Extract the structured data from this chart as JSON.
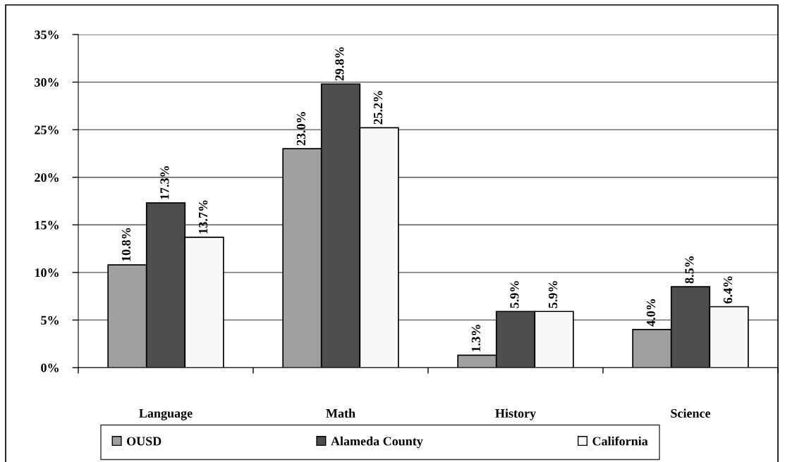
{
  "chart_data": {
    "type": "bar",
    "categories": [
      "Language",
      "Math",
      "History",
      "Science"
    ],
    "series": [
      {
        "name": "OUSD",
        "color": "#a0a0a0",
        "values": [
          10.8,
          23.0,
          1.3,
          4.0
        ],
        "value_labels": [
          "10.8%",
          "23.0%",
          "1.3%",
          "4.0%"
        ]
      },
      {
        "name": "Alameda County",
        "color": "#4d4d4d",
        "values": [
          17.3,
          29.8,
          5.9,
          8.5
        ],
        "value_labels": [
          "17.3%",
          "29.8%",
          "5.9%",
          "8.5%"
        ]
      },
      {
        "name": "California",
        "color": "#f8f8f8",
        "values": [
          13.7,
          25.2,
          5.9,
          6.4
        ],
        "value_labels": [
          "13.7%",
          "25.2%",
          "5.9%",
          "6.4%"
        ]
      }
    ],
    "ylim": [
      0,
      35
    ],
    "yticks": [
      {
        "value": 0,
        "label": "0%"
      },
      {
        "value": 5,
        "label": "5%"
      },
      {
        "value": 10,
        "label": "10%"
      },
      {
        "value": 15,
        "label": "15%"
      },
      {
        "value": 20,
        "label": "20%"
      },
      {
        "value": 25,
        "label": "25%"
      },
      {
        "value": 30,
        "label": "30%"
      },
      {
        "value": 35,
        "label": "35%"
      }
    ],
    "grid": "y",
    "legend": "bottom"
  }
}
